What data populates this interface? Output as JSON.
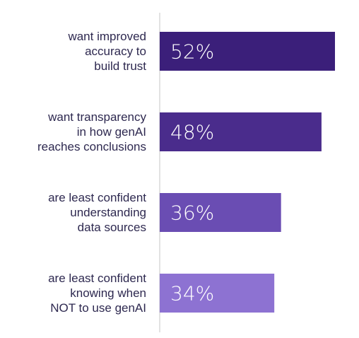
{
  "chart_data": {
    "type": "bar",
    "orientation": "horizontal",
    "categories": [
      [
        "want improved",
        "accuracy to",
        "build trust"
      ],
      [
        "want transparency",
        "in how genAI",
        "reaches conclusions"
      ],
      [
        "are least confident",
        "understanding",
        "data sources"
      ],
      [
        "are least confident",
        "knowing when",
        "NOT to use genAI"
      ]
    ],
    "values": [
      52,
      48,
      36,
      34
    ],
    "data_labels": [
      "52%",
      "48%",
      "36%",
      "34%"
    ],
    "bar_colors": [
      "#3b1f7a",
      "#4a2c8c",
      "#6a4db3",
      "#8d72d2"
    ],
    "label_color": "#2e2950",
    "value_label_color": "#ffffff",
    "axis_color": "#d9d9d9",
    "xlim": [
      0,
      55
    ],
    "grid": false,
    "legend": "none",
    "title": "",
    "xlabel": "",
    "ylabel": ""
  }
}
